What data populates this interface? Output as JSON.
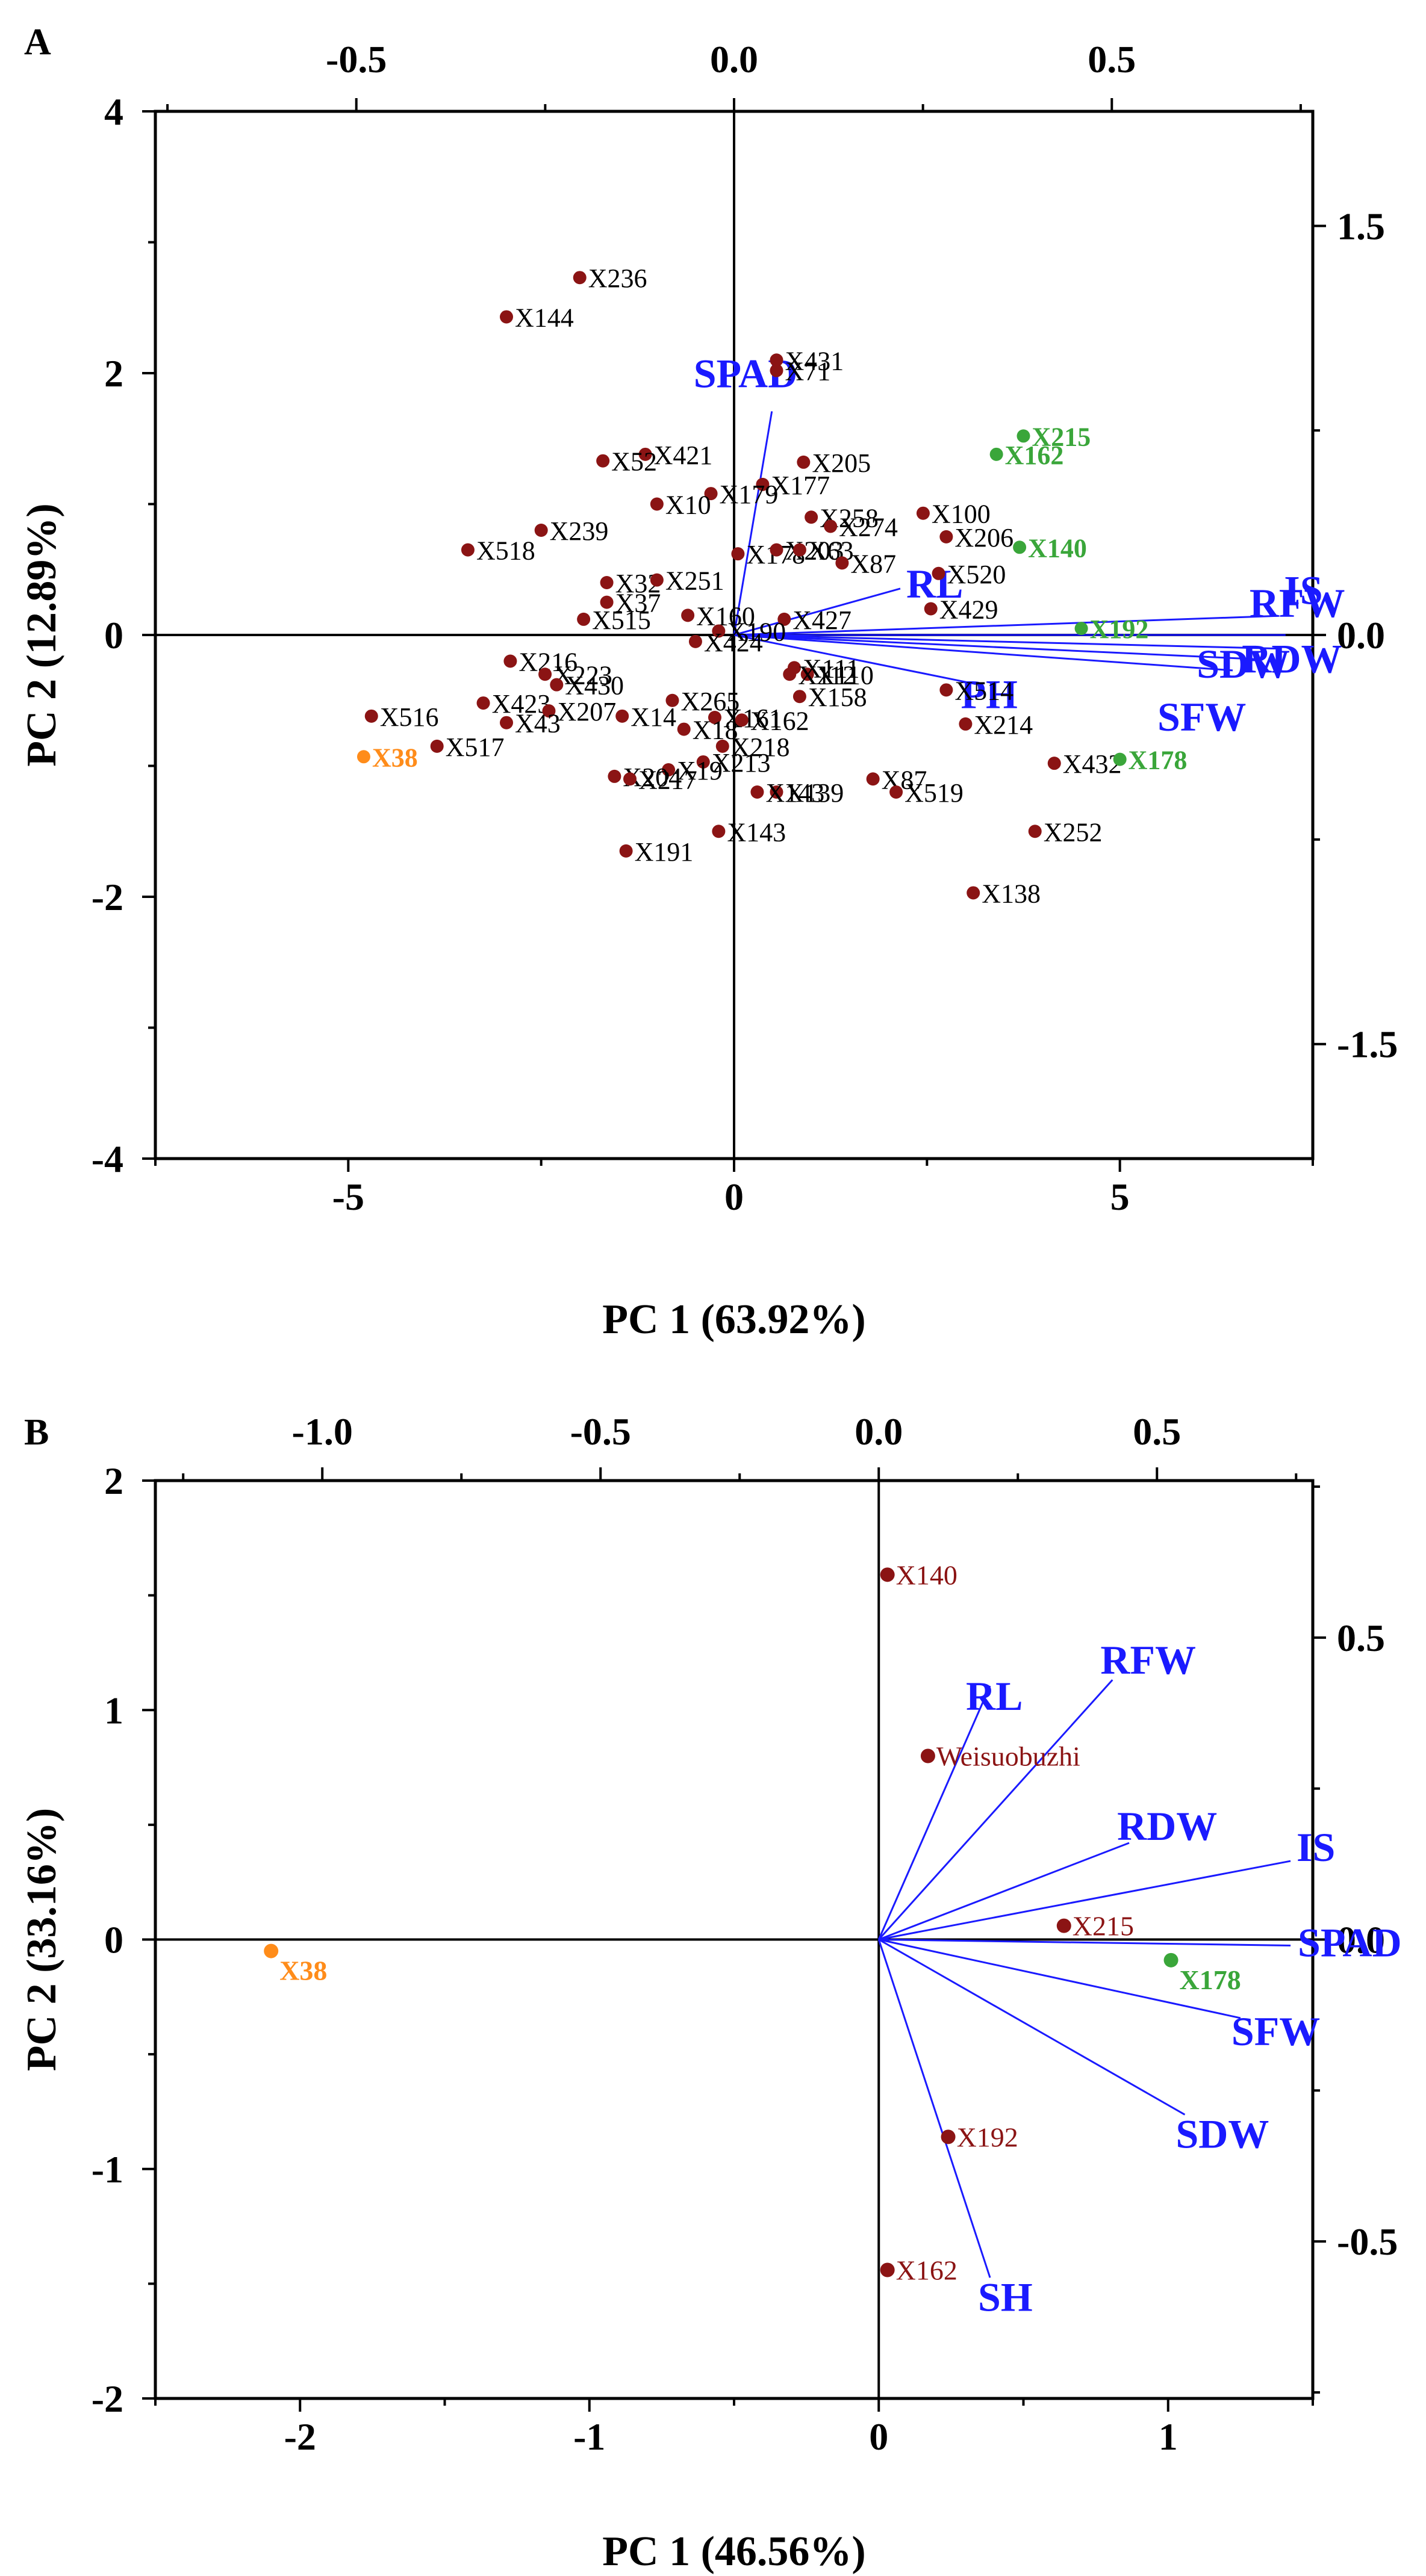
{
  "chart_data": [
    {
      "type": "scatter",
      "subtype": "biplot",
      "panel": "A",
      "xlabel": "PC 1 (63.92%)",
      "ylabel": "PC 2 (12.89%)",
      "xlim": [
        -7.5,
        7.5
      ],
      "ylim": [
        -4,
        4
      ],
      "x_ticks": [
        -5,
        0,
        5
      ],
      "y_ticks": [
        -4,
        -2,
        0,
        2,
        4
      ],
      "x_tick_labels": [
        "-5",
        "0",
        "5"
      ],
      "y_tick_labels": [
        "-4",
        "-2",
        "0",
        "2",
        "4"
      ],
      "top_axis": {
        "lim": [
          -0.766,
          0.766
        ],
        "ticks": [
          -0.5,
          0,
          0.5
        ],
        "tick_labels": [
          "-0.5",
          "0.0",
          "0.5"
        ]
      },
      "right_axis": {
        "lim": [
          -1.92,
          1.92
        ],
        "ticks": [
          -1.5,
          0,
          1.5
        ],
        "tick_labels": [
          "-1.5",
          "0.0",
          "1.5"
        ]
      },
      "grid": false,
      "colors": {
        "genotype": "#8b1414",
        "highlight_green": "#3aa63a",
        "highlight_orange": "#ff8c1a",
        "loading": "#1a1aff",
        "axes": "#000000"
      },
      "points": [
        {
          "label": "X236",
          "x": -2.0,
          "y": 2.73,
          "group": "dark"
        },
        {
          "label": "X144",
          "x": -2.95,
          "y": 2.43,
          "group": "dark"
        },
        {
          "label": "X431",
          "x": 0.55,
          "y": 2.1,
          "group": "dark"
        },
        {
          "label": "X71",
          "x": 0.55,
          "y": 2.02,
          "group": "dark"
        },
        {
          "label": "X421",
          "x": -1.15,
          "y": 1.38,
          "group": "dark"
        },
        {
          "label": "X52",
          "x": -1.7,
          "y": 1.33,
          "group": "dark"
        },
        {
          "label": "X205",
          "x": 0.9,
          "y": 1.32,
          "group": "dark"
        },
        {
          "label": "X177",
          "x": 0.37,
          "y": 1.15,
          "group": "dark"
        },
        {
          "label": "X179",
          "x": -0.3,
          "y": 1.08,
          "group": "dark"
        },
        {
          "label": "X10",
          "x": -1.0,
          "y": 1.0,
          "group": "dark"
        },
        {
          "label": "X258",
          "x": 1.0,
          "y": 0.9,
          "group": "dark"
        },
        {
          "label": "X274",
          "x": 1.25,
          "y": 0.83,
          "group": "dark"
        },
        {
          "label": "X100",
          "x": 2.45,
          "y": 0.93,
          "group": "dark"
        },
        {
          "label": "X206",
          "x": 2.75,
          "y": 0.75,
          "group": "dark"
        },
        {
          "label": "X239",
          "x": -2.5,
          "y": 0.8,
          "group": "dark"
        },
        {
          "label": "X518",
          "x": -3.45,
          "y": 0.65,
          "group": "dark"
        },
        {
          "label": "X178",
          "x": 0.05,
          "y": 0.62,
          "group": "dark"
        },
        {
          "label": "X203",
          "x": 0.55,
          "y": 0.65,
          "group": "dark"
        },
        {
          "label": "X63",
          "x": 0.85,
          "y": 0.65,
          "group": "dark"
        },
        {
          "label": "X87",
          "x": 1.4,
          "y": 0.55,
          "group": "dark"
        },
        {
          "label": "X520",
          "x": 2.65,
          "y": 0.47,
          "group": "dark"
        },
        {
          "label": "X32",
          "x": -1.65,
          "y": 0.4,
          "group": "dark"
        },
        {
          "label": "X251",
          "x": -1.0,
          "y": 0.42,
          "group": "dark"
        },
        {
          "label": "X37",
          "x": -1.65,
          "y": 0.25,
          "group": "dark"
        },
        {
          "label": "X429",
          "x": 2.55,
          "y": 0.2,
          "group": "dark"
        },
        {
          "label": "X160",
          "x": -0.6,
          "y": 0.15,
          "group": "dark"
        },
        {
          "label": "X427",
          "x": 0.65,
          "y": 0.12,
          "group": "dark"
        },
        {
          "label": "X515",
          "x": -1.95,
          "y": 0.12,
          "group": "dark"
        },
        {
          "label": "X190",
          "x": -0.2,
          "y": 0.03,
          "group": "dark"
        },
        {
          "label": "X424",
          "x": -0.5,
          "y": -0.05,
          "group": "dark"
        },
        {
          "label": "X216",
          "x": -2.9,
          "y": -0.2,
          "group": "dark"
        },
        {
          "label": "X223",
          "x": -2.45,
          "y": -0.3,
          "group": "dark"
        },
        {
          "label": "X430",
          "x": -2.3,
          "y": -0.38,
          "group": "dark"
        },
        {
          "label": "X111",
          "x": 0.78,
          "y": -0.25,
          "group": "dark"
        },
        {
          "label": "X110",
          "x": 0.95,
          "y": -0.3,
          "group": "dark"
        },
        {
          "label": "X112",
          "x": 0.72,
          "y": -0.3,
          "group": "dark"
        },
        {
          "label": "X158",
          "x": 0.85,
          "y": -0.47,
          "group": "dark"
        },
        {
          "label": "X514",
          "x": 2.75,
          "y": -0.42,
          "group": "dark"
        },
        {
          "label": "X423",
          "x": -3.25,
          "y": -0.52,
          "group": "dark"
        },
        {
          "label": "X207",
          "x": -2.4,
          "y": -0.58,
          "group": "dark"
        },
        {
          "label": "X43",
          "x": -2.95,
          "y": -0.67,
          "group": "dark"
        },
        {
          "label": "X265",
          "x": -0.8,
          "y": -0.5,
          "group": "dark"
        },
        {
          "label": "X14",
          "x": -1.45,
          "y": -0.62,
          "group": "dark"
        },
        {
          "label": "X161",
          "x": -0.25,
          "y": -0.63,
          "group": "dark"
        },
        {
          "label": "X162",
          "x": 0.1,
          "y": -0.65,
          "group": "dark"
        },
        {
          "label": "X214",
          "x": 3.0,
          "y": -0.68,
          "group": "dark"
        },
        {
          "label": "X516",
          "x": -4.7,
          "y": -0.62,
          "group": "dark"
        },
        {
          "label": "X517",
          "x": -3.85,
          "y": -0.85,
          "group": "dark"
        },
        {
          "label": "X18",
          "x": -0.65,
          "y": -0.72,
          "group": "dark"
        },
        {
          "label": "X218",
          "x": -0.15,
          "y": -0.85,
          "group": "dark"
        },
        {
          "label": "X213",
          "x": -0.4,
          "y": -0.97,
          "group": "dark"
        },
        {
          "label": "X19",
          "x": -0.85,
          "y": -1.03,
          "group": "dark"
        },
        {
          "label": "X204",
          "x": -1.55,
          "y": -1.08,
          "group": "dark"
        },
        {
          "label": "X217",
          "x": -1.35,
          "y": -1.1,
          "group": "dark"
        },
        {
          "label": "X87",
          "x": 1.8,
          "y": -1.1,
          "group": "dark"
        },
        {
          "label": "X432",
          "x": 4.15,
          "y": -0.98,
          "group": "dark"
        },
        {
          "label": "X519",
          "x": 2.1,
          "y": -1.2,
          "group": "dark"
        },
        {
          "label": "X139",
          "x": 0.55,
          "y": -1.2,
          "group": "dark"
        },
        {
          "label": "X143",
          "x": 0.3,
          "y": -1.2,
          "group": "dark"
        },
        {
          "label": "X143",
          "x": -0.2,
          "y": -1.5,
          "group": "dark"
        },
        {
          "label": "X252",
          "x": 3.9,
          "y": -1.5,
          "group": "dark"
        },
        {
          "label": "X191",
          "x": -1.4,
          "y": -1.65,
          "group": "dark"
        },
        {
          "label": "X138",
          "x": 3.1,
          "y": -1.97,
          "group": "dark"
        },
        {
          "label": "X215",
          "x": 3.75,
          "y": 1.52,
          "group": "green"
        },
        {
          "label": "X162",
          "x": 3.4,
          "y": 1.38,
          "group": "green"
        },
        {
          "label": "X140",
          "x": 3.7,
          "y": 0.67,
          "group": "green"
        },
        {
          "label": "X192",
          "x": 4.5,
          "y": 0.05,
          "group": "green"
        },
        {
          "label": "X178",
          "x": 5.0,
          "y": -0.95,
          "group": "green"
        },
        {
          "label": "X38",
          "x": -4.8,
          "y": -0.93,
          "group": "orange"
        }
      ],
      "loadings_top_right_units": [
        {
          "label": "SPAD",
          "x": 0.05,
          "y": 0.82
        },
        {
          "label": "RL",
          "x": 0.22,
          "y": 0.17
        },
        {
          "label": "IS",
          "x": 0.72,
          "y": 0.07
        },
        {
          "label": "RFW",
          "x": 0.73,
          "y": 0.0
        },
        {
          "label": "RDW",
          "x": 0.72,
          "y": -0.05
        },
        {
          "label": "SDW",
          "x": 0.7,
          "y": -0.09
        },
        {
          "label": "PH",
          "x": 0.32,
          "y": -0.18
        },
        {
          "label": "SFW",
          "x": 0.66,
          "y": -0.13
        }
      ]
    },
    {
      "type": "scatter",
      "subtype": "biplot",
      "panel": "B",
      "xlabel": "PC 1 (46.56%)",
      "ylabel": "PC 2 (33.16%)",
      "xlim": [
        -2.5,
        1.5
      ],
      "ylim": [
        -2,
        2
      ],
      "x_ticks": [
        -2,
        -1,
        0,
        1
      ],
      "y_ticks": [
        -2,
        -1,
        0,
        1,
        2
      ],
      "x_tick_labels": [
        "-2",
        "-1",
        "0",
        "1"
      ],
      "y_tick_labels": [
        "-2",
        "-1",
        "0",
        "1",
        "2"
      ],
      "top_axis": {
        "lim": [
          -1.3,
          0.78
        ],
        "ticks": [
          -1.0,
          -0.5,
          0,
          0.5
        ],
        "tick_labels": [
          "-1.0",
          "-0.5",
          "0.0",
          "0.5"
        ]
      },
      "right_axis": {
        "lim": [
          -0.76,
          0.76
        ],
        "ticks": [
          -0.5,
          0,
          0.5
        ],
        "tick_labels": [
          "-0.5",
          "0.0",
          "0.5"
        ]
      },
      "grid": false,
      "points": [
        {
          "label": "X140",
          "x": 0.03,
          "y": 1.59,
          "group": "dark"
        },
        {
          "label": "Weisuobuzhi",
          "x": 0.17,
          "y": 0.8,
          "group": "dark"
        },
        {
          "label": "X215",
          "x": 0.64,
          "y": 0.06,
          "group": "dark"
        },
        {
          "label": "X192",
          "x": 0.24,
          "y": -0.86,
          "group": "dark"
        },
        {
          "label": "X162",
          "x": 0.03,
          "y": -1.44,
          "group": "dark"
        },
        {
          "label": "X178",
          "x": 1.01,
          "y": -0.09,
          "group": "green"
        },
        {
          "label": "X38",
          "x": -2.1,
          "y": -0.05,
          "group": "orange"
        }
      ],
      "loadings_top_right_units": [
        {
          "label": "RL",
          "x": 0.2,
          "y": 0.42
        },
        {
          "label": "RFW",
          "x": 0.42,
          "y": 0.43
        },
        {
          "label": "RDW",
          "x": 0.45,
          "y": 0.16
        },
        {
          "label": "IS",
          "x": 0.74,
          "y": 0.13
        },
        {
          "label": "SPAD",
          "x": 0.74,
          "y": -0.01
        },
        {
          "label": "SFW",
          "x": 0.65,
          "y": -0.13
        },
        {
          "label": "SDW",
          "x": 0.55,
          "y": -0.29
        },
        {
          "label": "SH",
          "x": 0.2,
          "y": -0.56
        }
      ]
    }
  ]
}
